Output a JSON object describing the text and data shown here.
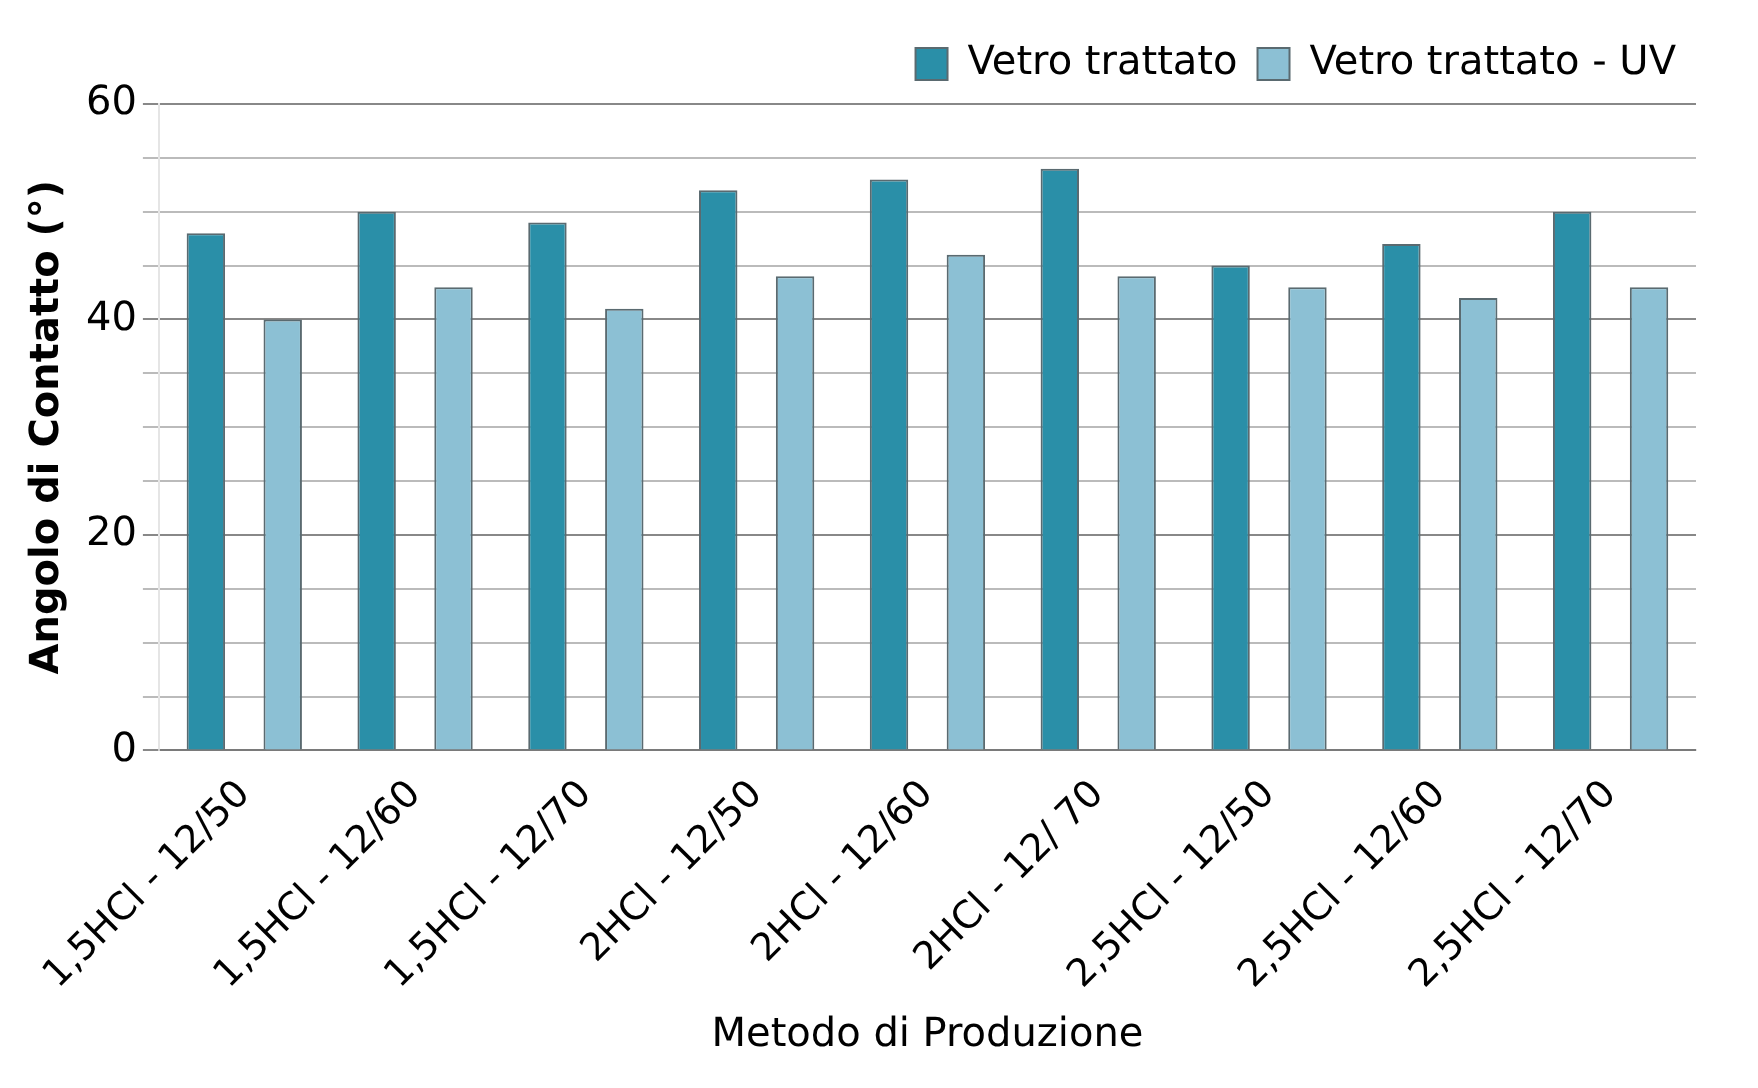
{
  "chart_data": {
    "type": "bar",
    "xlabel": "Metodo di Produzione",
    "ylabel": "Angolo di Contatto (°)",
    "categories": [
      "1,5HCl - 12/50",
      "1,5HCl - 12/60",
      "1,5HCl - 12/70",
      "2HCl - 12/50",
      "2HCl - 12/60",
      "2HCl - 12/ 70",
      "2,5HCl - 12/50",
      "2,5HCl - 12/60",
      "2,5HCl - 12/70"
    ],
    "series": [
      {
        "name": "Vetro trattato",
        "color": "#2a8fa8",
        "values": [
          48,
          50,
          49,
          52,
          53,
          54,
          45,
          47,
          50
        ]
      },
      {
        "name": "Vetro trattato - UV",
        "color": "#8cc0d4",
        "values": [
          40,
          43,
          41,
          44,
          46,
          44,
          43,
          42,
          43
        ]
      }
    ],
    "ylim": [
      0,
      60
    ],
    "yticks": [
      0,
      {
        "value": 5,
        "label": null
      },
      {
        "value": 10,
        "label": null
      },
      {
        "value": 15,
        "label": null
      },
      20,
      {
        "value": 25,
        "label": null
      },
      {
        "value": 30,
        "label": null
      },
      {
        "value": 35,
        "label": null
      },
      40,
      {
        "value": 45,
        "label": null
      },
      {
        "value": 50,
        "label": null
      },
      {
        "value": 55,
        "label": null
      },
      60
    ],
    "grid": "y",
    "legend": "top right"
  }
}
